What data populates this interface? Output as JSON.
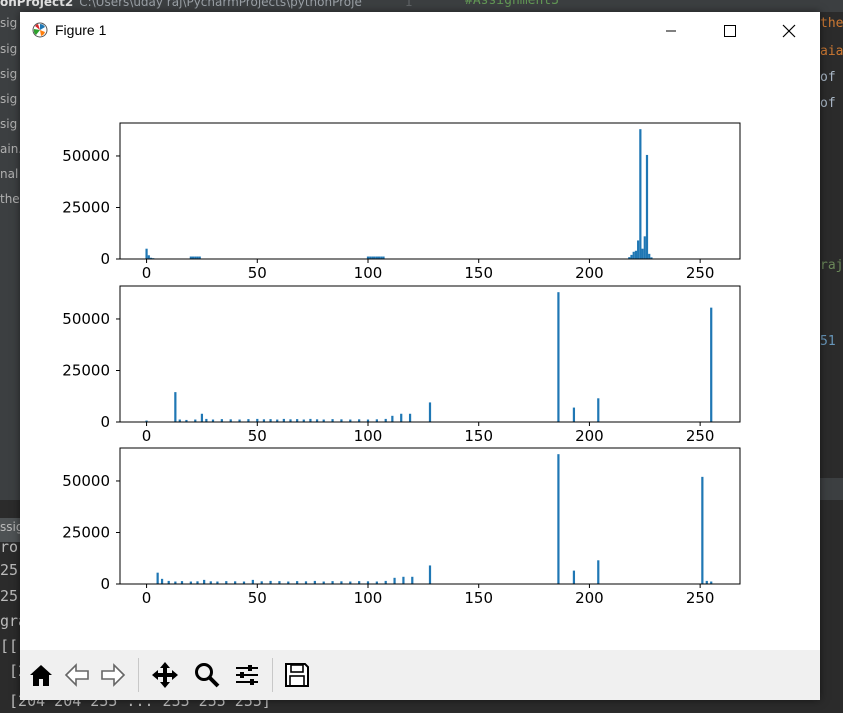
{
  "ide": {
    "project_name": "onProject2",
    "project_path": "C:\\Users\\uday raj\\PycharmProjects\\pythonProje",
    "line_number": "1",
    "code_top": "#Assignment3",
    "sidebar_fragments": [
      "sig",
      "sig",
      "sig",
      "sig",
      "sig",
      "ain.",
      "nal",
      "thes"
    ],
    "right_fragments": [
      "the",
      "aia",
      "of",
      "of",
      "raj",
      "51"
    ],
    "console_tab": "ssig",
    "console_lines": [
      "ro",
      "25",
      "25",
      "gra",
      "[[",
      " [2",
      " [204 204 255 ... 255 255 255]"
    ]
  },
  "window": {
    "title": "Figure 1",
    "minimize_icon": "minimize-icon",
    "maximize_icon": "maximize-icon",
    "close_icon": "close-icon"
  },
  "toolbar": {
    "buttons": [
      "home-icon",
      "back-icon",
      "forward-icon",
      "pan-icon",
      "zoom-icon",
      "configure-subplots-icon",
      "save-icon"
    ]
  },
  "colors": {
    "bar": "#1f77b4",
    "toolbar_bg": "#f0f0f0"
  },
  "chart_data": [
    {
      "type": "bar",
      "xlim": [
        -12,
        268
      ],
      "ylim": [
        0,
        66000
      ],
      "xticks": [
        "0",
        "50",
        "100",
        "150",
        "200",
        "250"
      ],
      "xtick_values": [
        0,
        50,
        100,
        150,
        200,
        250
      ],
      "yticks": [
        "0",
        "25000",
        "50000"
      ],
      "ytick_values": [
        0,
        25000,
        50000
      ],
      "bars": [
        [
          0,
          5000
        ],
        [
          1,
          1800
        ],
        [
          2,
          600
        ],
        [
          3,
          400
        ],
        [
          20,
          1200
        ],
        [
          21,
          1200
        ],
        [
          22,
          1200
        ],
        [
          23,
          1200
        ],
        [
          24,
          1200
        ],
        [
          100,
          1200
        ],
        [
          101,
          1200
        ],
        [
          102,
          1200
        ],
        [
          103,
          1200
        ],
        [
          104,
          1200
        ],
        [
          105,
          1200
        ],
        [
          106,
          1200
        ],
        [
          107,
          1200
        ],
        [
          218,
          900
        ],
        [
          219,
          2000
        ],
        [
          220,
          3500
        ],
        [
          221,
          4000
        ],
        [
          222,
          9000
        ],
        [
          223,
          63000
        ],
        [
          224,
          5000
        ],
        [
          225,
          11000
        ],
        [
          226,
          50500
        ],
        [
          227,
          2500
        ],
        [
          228,
          800
        ]
      ]
    },
    {
      "type": "bar",
      "xlim": [
        -12,
        268
      ],
      "ylim": [
        0,
        66000
      ],
      "xticks": [
        "0",
        "50",
        "100",
        "150",
        "200",
        "250"
      ],
      "xtick_values": [
        0,
        50,
        100,
        150,
        200,
        250
      ],
      "yticks": [
        "0",
        "25000",
        "50000"
      ],
      "ytick_values": [
        0,
        25000,
        50000
      ],
      "bars": [
        [
          0,
          700
        ],
        [
          13,
          14500
        ],
        [
          15,
          1200
        ],
        [
          18,
          1000
        ],
        [
          22,
          1200
        ],
        [
          25,
          4000
        ],
        [
          27,
          1500
        ],
        [
          30,
          1200
        ],
        [
          34,
          1400
        ],
        [
          38,
          1300
        ],
        [
          42,
          1200
        ],
        [
          46,
          1400
        ],
        [
          50,
          1500
        ],
        [
          53,
          1300
        ],
        [
          56,
          1400
        ],
        [
          59,
          1200
        ],
        [
          62,
          1500
        ],
        [
          65,
          1300
        ],
        [
          68,
          1400
        ],
        [
          71,
          1200
        ],
        [
          74,
          1500
        ],
        [
          77,
          1300
        ],
        [
          80,
          1200
        ],
        [
          84,
          1400
        ],
        [
          88,
          1300
        ],
        [
          92,
          1200
        ],
        [
          96,
          1300
        ],
        [
          100,
          1200
        ],
        [
          104,
          1300
        ],
        [
          108,
          1500
        ],
        [
          111,
          3000
        ],
        [
          115,
          4000
        ],
        [
          119,
          4000
        ],
        [
          128,
          9500
        ],
        [
          186,
          63000
        ],
        [
          193,
          7000
        ],
        [
          204,
          11500
        ],
        [
          255,
          55500
        ]
      ]
    },
    {
      "type": "bar",
      "xlim": [
        -12,
        268
      ],
      "ylim": [
        0,
        66000
      ],
      "xticks": [
        "0",
        "50",
        "100",
        "150",
        "200",
        "250"
      ],
      "xtick_values": [
        0,
        50,
        100,
        150,
        200,
        250
      ],
      "yticks": [
        "0",
        "25000",
        "50000"
      ],
      "ytick_values": [
        0,
        25000,
        50000
      ],
      "bars": [
        [
          5,
          5500
        ],
        [
          7,
          2500
        ],
        [
          10,
          1500
        ],
        [
          13,
          1200
        ],
        [
          16,
          1400
        ],
        [
          20,
          1200
        ],
        [
          23,
          1300
        ],
        [
          26,
          2000
        ],
        [
          29,
          1300
        ],
        [
          32,
          1200
        ],
        [
          36,
          1400
        ],
        [
          40,
          1300
        ],
        [
          44,
          1200
        ],
        [
          48,
          2000
        ],
        [
          52,
          1300
        ],
        [
          56,
          1500
        ],
        [
          60,
          1400
        ],
        [
          64,
          1200
        ],
        [
          68,
          1400
        ],
        [
          72,
          1300
        ],
        [
          76,
          1500
        ],
        [
          80,
          1200
        ],
        [
          84,
          1400
        ],
        [
          88,
          1300
        ],
        [
          92,
          1200
        ],
        [
          96,
          1400
        ],
        [
          100,
          1300
        ],
        [
          104,
          1200
        ],
        [
          108,
          1500
        ],
        [
          112,
          3000
        ],
        [
          116,
          3500
        ],
        [
          120,
          3500
        ],
        [
          128,
          9000
        ],
        [
          186,
          63000
        ],
        [
          193,
          6500
        ],
        [
          204,
          11500
        ],
        [
          251,
          52000
        ],
        [
          253,
          1500
        ],
        [
          255,
          1200
        ]
      ]
    }
  ]
}
